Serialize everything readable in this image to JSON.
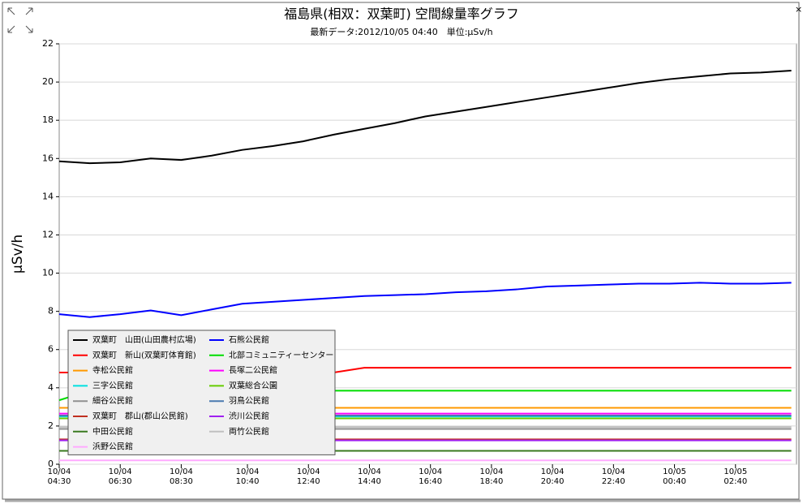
{
  "chart_data": {
    "type": "line",
    "title": "福島県(相双：双葉町) 空間線量率グラフ",
    "subtitle": "最新データ:2012/10/05 04:40　単位:μSv/h",
    "y_label": "μSv/h",
    "x": [
      0,
      1,
      2,
      3,
      4,
      5,
      6,
      7,
      8,
      9,
      10,
      11,
      12,
      13,
      14,
      15,
      16,
      17,
      18,
      19,
      20,
      21,
      22,
      23,
      24
    ],
    "xlim": [
      0,
      24.17
    ],
    "xticks": [
      {
        "value": 0,
        "label": "10/04\n04:30"
      },
      {
        "value": 2,
        "label": "10/04\n06:30"
      },
      {
        "value": 4,
        "label": "10/04\n08:30"
      },
      {
        "value": 6.17,
        "label": "10/04\n10:40"
      },
      {
        "value": 8.17,
        "label": "10/04\n12:40"
      },
      {
        "value": 10.17,
        "label": "10/04\n14:40"
      },
      {
        "value": 12.17,
        "label": "10/04\n16:40"
      },
      {
        "value": 14.17,
        "label": "10/04\n18:40"
      },
      {
        "value": 16.17,
        "label": "10/04\n20:40"
      },
      {
        "value": 18.17,
        "label": "10/04\n22:40"
      },
      {
        "value": 20.17,
        "label": "10/05\n00:40"
      },
      {
        "value": 22.17,
        "label": "10/05\n02:40"
      }
    ],
    "ylim": [
      0,
      22
    ],
    "yticks": [
      0,
      2,
      4,
      6,
      8,
      10,
      12,
      14,
      16,
      18,
      20,
      22
    ],
    "grid": true,
    "legend_position": "lower left",
    "series": [
      {
        "name": "双葉町　山田(山田農村広場)",
        "color": "#000000",
        "values": [
          15.85,
          15.75,
          15.8,
          16.0,
          15.92,
          16.15,
          16.45,
          16.65,
          16.9,
          17.25,
          17.55,
          17.85,
          18.2,
          18.45,
          18.7,
          18.95,
          19.2,
          19.45,
          19.7,
          19.95,
          20.15,
          20.3,
          20.45,
          20.5,
          20.6
        ]
      },
      {
        "name": "双葉町　新山(双葉町体育館)",
        "color": "#ff0000",
        "values": [
          4.8,
          4.8,
          4.8,
          4.8,
          4.8,
          4.8,
          4.8,
          4.8,
          4.8,
          4.8,
          5.05,
          5.05,
          5.05,
          5.05,
          5.05,
          5.05,
          5.05,
          5.05,
          5.05,
          5.05,
          5.05,
          5.05,
          5.05,
          5.05,
          5.05
        ]
      },
      {
        "name": "寺松公民館",
        "color": "#ff9900",
        "values": [
          2.95,
          2.95,
          2.95,
          2.95,
          2.95,
          2.95,
          2.95,
          2.95,
          2.95,
          2.95,
          2.95,
          2.95,
          2.95,
          2.95,
          2.95,
          2.95,
          2.95,
          2.95,
          2.95,
          2.95,
          2.95,
          2.95,
          2.95,
          2.95,
          2.95
        ]
      },
      {
        "name": "三字公民館",
        "color": "#00e0e0",
        "values": [
          2.5,
          2.5,
          2.5,
          2.5,
          2.5,
          2.5,
          2.5,
          2.5,
          2.5,
          2.5,
          2.5,
          2.5,
          2.5,
          2.5,
          2.5,
          2.5,
          2.5,
          2.5,
          2.5,
          2.5,
          2.5,
          2.5,
          2.5,
          2.5,
          2.5
        ]
      },
      {
        "name": "細谷公民館",
        "color": "#909090",
        "values": [
          1.85,
          1.85,
          1.85,
          1.85,
          1.85,
          1.85,
          1.85,
          1.85,
          1.85,
          1.85,
          1.85,
          1.85,
          1.85,
          1.85,
          1.85,
          1.85,
          1.85,
          1.85,
          1.85,
          1.85,
          1.85,
          1.85,
          1.85,
          1.85,
          1.85
        ]
      },
      {
        "name": "双葉町　郡山(郡山公民館)",
        "color": "#c03020",
        "values": [
          1.3,
          1.3,
          1.3,
          1.3,
          1.3,
          1.3,
          1.3,
          1.3,
          1.3,
          1.3,
          1.3,
          1.3,
          1.3,
          1.3,
          1.3,
          1.3,
          1.3,
          1.3,
          1.3,
          1.3,
          1.3,
          1.3,
          1.3,
          1.3,
          1.3
        ]
      },
      {
        "name": "中田公民館",
        "color": "#3a7a20",
        "values": [
          0.7,
          0.7,
          0.7,
          0.7,
          0.7,
          0.7,
          0.7,
          0.7,
          0.7,
          0.7,
          0.7,
          0.7,
          0.7,
          0.7,
          0.7,
          0.7,
          0.7,
          0.7,
          0.7,
          0.7,
          0.7,
          0.7,
          0.7,
          0.7,
          0.7
        ]
      },
      {
        "name": "浜野公民館",
        "color": "#ffaaff",
        "values": [
          0.2,
          0.2,
          0.2,
          0.2,
          0.2,
          0.2,
          0.2,
          0.2,
          0.2,
          0.2,
          0.2,
          0.2,
          0.2,
          0.2,
          0.2,
          0.2,
          0.2,
          0.2,
          0.2,
          0.2,
          0.2,
          0.2,
          0.2,
          0.2,
          0.2
        ]
      },
      {
        "name": "石熊公民館",
        "color": "#0000ff",
        "values": [
          7.85,
          7.7,
          7.85,
          8.05,
          7.8,
          8.1,
          8.4,
          8.5,
          8.6,
          8.7,
          8.8,
          8.85,
          8.9,
          9.0,
          9.05,
          9.15,
          9.3,
          9.35,
          9.4,
          9.45,
          9.45,
          9.5,
          9.45,
          9.45,
          9.5
        ]
      },
      {
        "name": "北部コミュニティーセンター",
        "color": "#00dd00",
        "values": [
          3.35,
          3.85,
          3.85,
          3.85,
          3.85,
          3.85,
          3.85,
          3.85,
          3.85,
          3.85,
          3.85,
          3.85,
          3.85,
          3.85,
          3.85,
          3.85,
          3.85,
          3.85,
          3.85,
          3.85,
          3.85,
          3.85,
          3.85,
          3.85,
          3.85
        ]
      },
      {
        "name": "長塚二公民館",
        "color": "#ff00ff",
        "values": [
          2.65,
          2.65,
          2.65,
          2.65,
          2.65,
          2.65,
          2.65,
          2.65,
          2.65,
          2.65,
          2.65,
          2.65,
          2.65,
          2.65,
          2.65,
          2.65,
          2.65,
          2.65,
          2.65,
          2.65,
          2.65,
          2.65,
          2.65,
          2.65,
          2.65
        ]
      },
      {
        "name": "双葉総合公園",
        "color": "#66cc00",
        "values": [
          2.4,
          2.4,
          2.4,
          2.4,
          2.4,
          2.4,
          2.4,
          2.4,
          2.4,
          2.4,
          2.4,
          2.4,
          2.4,
          2.4,
          2.4,
          2.4,
          2.4,
          2.4,
          2.4,
          2.4,
          2.4,
          2.4,
          2.4,
          2.4,
          2.4
        ]
      },
      {
        "name": "羽鳥公民館",
        "color": "#4a7ab0",
        "values": [
          2.55,
          2.55,
          2.55,
          2.55,
          2.55,
          2.55,
          2.55,
          2.55,
          2.55,
          2.55,
          2.55,
          2.55,
          2.55,
          2.55,
          2.55,
          2.55,
          2.55,
          2.55,
          2.55,
          2.55,
          2.55,
          2.55,
          2.55,
          2.55,
          2.55
        ]
      },
      {
        "name": "渋川公民館",
        "color": "#a020f0",
        "values": [
          1.25,
          1.25,
          1.25,
          1.25,
          1.25,
          1.25,
          1.25,
          1.25,
          1.25,
          1.25,
          1.25,
          1.25,
          1.25,
          1.25,
          1.25,
          1.25,
          1.25,
          1.25,
          1.25,
          1.25,
          1.25,
          1.25,
          1.25,
          1.25,
          1.25
        ]
      },
      {
        "name": "両竹公民館",
        "color": "#c0c0c0",
        "values": [
          1.95,
          1.95,
          1.95,
          1.95,
          1.95,
          1.95,
          1.95,
          1.95,
          1.95,
          1.95,
          1.95,
          1.95,
          1.95,
          1.95,
          1.95,
          1.95,
          1.95,
          1.95,
          1.95,
          1.95,
          1.95,
          1.95,
          1.95,
          1.95,
          1.95
        ]
      }
    ]
  }
}
